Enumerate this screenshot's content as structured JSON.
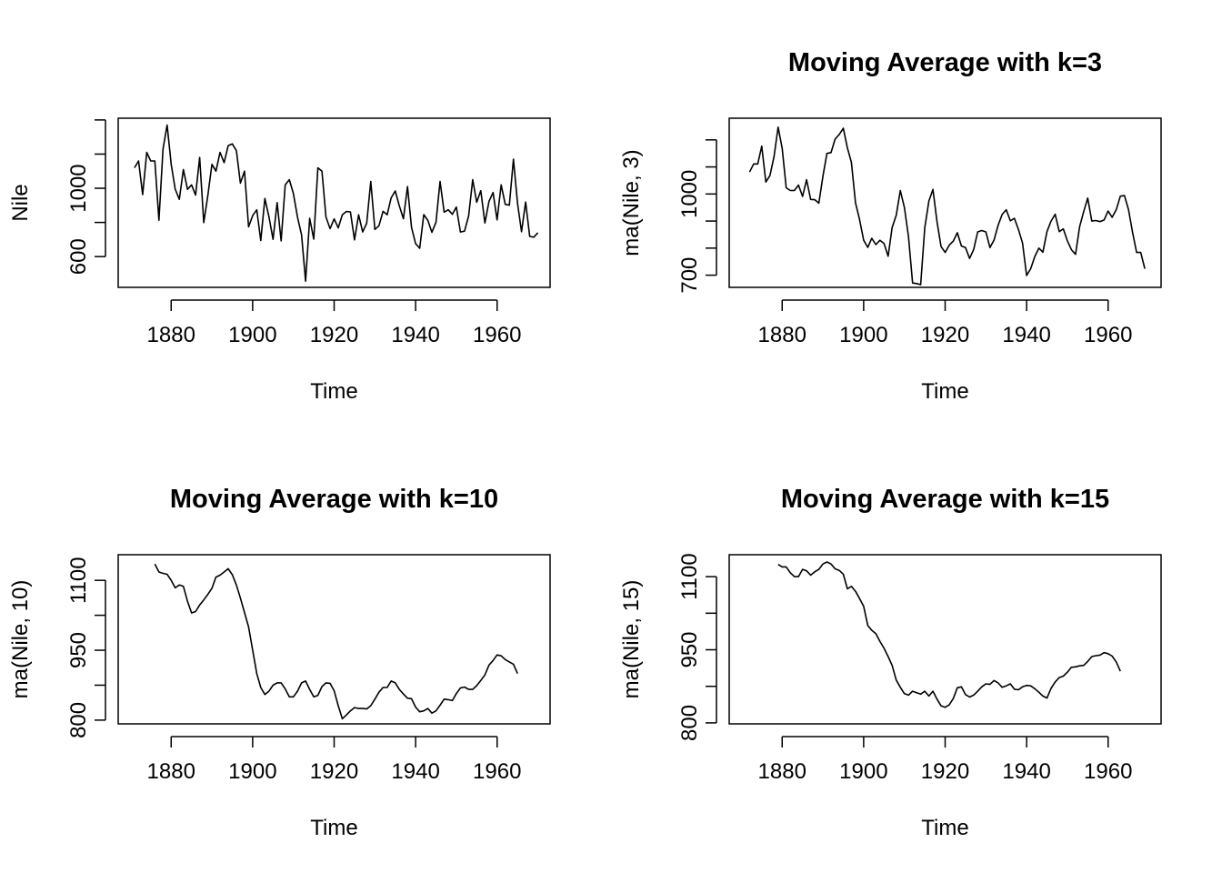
{
  "chart_data": [
    {
      "type": "line",
      "title": "",
      "xlabel": "Time",
      "ylabel": "Nile",
      "xlim": [
        1867,
        1973
      ],
      "ylim": [
        420,
        1410
      ],
      "xticks": [
        "1880",
        "1900",
        "1920",
        "1940",
        "1960"
      ],
      "yticks": [
        "600",
        "1000"
      ],
      "ytick_values": [
        400,
        600,
        800,
        1000,
        1200,
        1400
      ],
      "x": [
        1871,
        1872,
        1873,
        1874,
        1875,
        1876,
        1877,
        1878,
        1879,
        1880,
        1881,
        1882,
        1883,
        1884,
        1885,
        1886,
        1887,
        1888,
        1889,
        1890,
        1891,
        1892,
        1893,
        1894,
        1895,
        1896,
        1897,
        1898,
        1899,
        1900,
        1901,
        1902,
        1903,
        1904,
        1905,
        1906,
        1907,
        1908,
        1909,
        1910,
        1911,
        1912,
        1913,
        1914,
        1915,
        1916,
        1917,
        1918,
        1919,
        1920,
        1921,
        1922,
        1923,
        1924,
        1925,
        1926,
        1927,
        1928,
        1929,
        1930,
        1931,
        1932,
        1933,
        1934,
        1935,
        1936,
        1937,
        1938,
        1939,
        1940,
        1941,
        1942,
        1943,
        1944,
        1945,
        1946,
        1947,
        1948,
        1949,
        1950,
        1951,
        1952,
        1953,
        1954,
        1955,
        1956,
        1957,
        1958,
        1959,
        1960,
        1961,
        1962,
        1963,
        1964,
        1965,
        1966,
        1967,
        1968,
        1969,
        1970
      ],
      "values": [
        1120,
        1160,
        963,
        1210,
        1160,
        1160,
        813,
        1230,
        1370,
        1140,
        995,
        935,
        1110,
        994,
        1020,
        960,
        1180,
        799,
        958,
        1140,
        1100,
        1210,
        1150,
        1250,
        1260,
        1220,
        1030,
        1100,
        774,
        840,
        874,
        694,
        940,
        833,
        701,
        916,
        692,
        1020,
        1050,
        969,
        831,
        726,
        456,
        824,
        702,
        1120,
        1100,
        832,
        764,
        821,
        768,
        845,
        864,
        862,
        698,
        845,
        744,
        796,
        1040,
        759,
        781,
        865,
        845,
        944,
        984,
        897,
        822,
        1010,
        771,
        676,
        649,
        846,
        812,
        742,
        801,
        1040,
        860,
        874,
        848,
        890,
        744,
        749,
        838,
        1050,
        918,
        986,
        797,
        923,
        975,
        815,
        1020,
        906,
        901,
        1170,
        912,
        746,
        919,
        718,
        714,
        740
      ]
    },
    {
      "type": "line",
      "title": "Moving Average with k=3",
      "xlabel": "Time",
      "ylabel": "ma(Nile, 3)",
      "xlim": [
        1867,
        1973
      ],
      "ylim": [
        655,
        1280
      ],
      "xticks": [
        "1880",
        "1900",
        "1920",
        "1940",
        "1960"
      ],
      "yticks": [
        "700",
        "1000"
      ],
      "ytick_values": [
        700,
        800,
        900,
        1000,
        1100,
        1200
      ],
      "x": [
        1872,
        1873,
        1874,
        1875,
        1876,
        1877,
        1878,
        1879,
        1880,
        1881,
        1882,
        1883,
        1884,
        1885,
        1886,
        1887,
        1888,
        1889,
        1890,
        1891,
        1892,
        1893,
        1894,
        1895,
        1896,
        1897,
        1898,
        1899,
        1900,
        1901,
        1902,
        1903,
        1904,
        1905,
        1906,
        1907,
        1908,
        1909,
        1910,
        1911,
        1912,
        1913,
        1914,
        1915,
        1916,
        1917,
        1918,
        1919,
        1920,
        1921,
        1922,
        1923,
        1924,
        1925,
        1926,
        1927,
        1928,
        1929,
        1930,
        1931,
        1932,
        1933,
        1934,
        1935,
        1936,
        1937,
        1938,
        1939,
        1940,
        1941,
        1942,
        1943,
        1944,
        1945,
        1946,
        1947,
        1948,
        1949,
        1950,
        1951,
        1952,
        1953,
        1954,
        1955,
        1956,
        1957,
        1958,
        1959,
        1960,
        1961,
        1962,
        1963,
        1964,
        1965,
        1966,
        1967,
        1968,
        1969
      ],
      "values": [
        1081,
        1111,
        1111,
        1177,
        1044,
        1068,
        1138,
        1247,
        1168,
        1023,
        1013,
        1013,
        1033,
        991,
        1053,
        980,
        979,
        966,
        1066,
        1150,
        1153,
        1203,
        1220,
        1243,
        1170,
        1117,
        968,
        905,
        829,
        803,
        836,
        813,
        829,
        817,
        770,
        876,
        921,
        1013,
        950,
        842,
        671,
        669,
        665,
        875,
        974,
        1017,
        899,
        806,
        784,
        811,
        826,
        857,
        808,
        802,
        762,
        795,
        860,
        865,
        860,
        802,
        830,
        885,
        924,
        942,
        901,
        910,
        868,
        819,
        699,
        724,
        769,
        800,
        785,
        861,
        900,
        925,
        861,
        871,
        827,
        794,
        777,
        879,
        935,
        985,
        900,
        902,
        898,
        904,
        937,
        914,
        942,
        992,
        994,
        942,
        859,
        784,
        784,
        724
      ]
    },
    {
      "type": "line",
      "title": "Moving Average with k=10",
      "xlabel": "Time",
      "ylabel": "ma(Nile, 10)",
      "xlim": [
        1867,
        1973
      ],
      "ylim": [
        792,
        1155
      ],
      "xticks": [
        "1880",
        "1900",
        "1920",
        "1940",
        "1960"
      ],
      "yticks": [
        "800",
        "950",
        "1100"
      ],
      "ytick_values": [
        800,
        875,
        950,
        1025,
        1100,
        1175
      ],
      "x": [
        1876,
        1877,
        1878,
        1879,
        1880,
        1881,
        1882,
        1883,
        1884,
        1885,
        1886,
        1887,
        1888,
        1889,
        1890,
        1891,
        1892,
        1893,
        1894,
        1895,
        1896,
        1897,
        1898,
        1899,
        1900,
        1901,
        1902,
        1903,
        1904,
        1905,
        1906,
        1907,
        1908,
        1909,
        1910,
        1911,
        1912,
        1913,
        1914,
        1915,
        1916,
        1917,
        1918,
        1919,
        1920,
        1921,
        1922,
        1923,
        1924,
        1925,
        1926,
        1927,
        1928,
        1929,
        1930,
        1931,
        1932,
        1933,
        1934,
        1935,
        1936,
        1937,
        1938,
        1939,
        1940,
        1941,
        1942,
        1943,
        1944,
        1945,
        1946,
        1947,
        1948,
        1949,
        1950,
        1951,
        1952,
        1953,
        1954,
        1955,
        1956,
        1957,
        1958,
        1959,
        1960,
        1961,
        1962,
        1963,
        1964,
        1965
      ],
      "values": [
        1135,
        1118,
        1115,
        1113,
        1100,
        1084,
        1090,
        1087,
        1055,
        1030,
        1033,
        1047,
        1058,
        1070,
        1083,
        1107,
        1111,
        1118,
        1125,
        1112,
        1090,
        1062,
        1031,
        1000,
        950,
        900,
        870,
        855,
        862,
        875,
        880,
        880,
        867,
        850,
        850,
        862,
        880,
        884,
        866,
        850,
        853,
        872,
        880,
        879,
        863,
        831,
        803,
        811,
        820,
        827,
        825,
        825,
        824,
        831,
        845,
        860,
        870,
        870,
        884,
        880,
        866,
        856,
        847,
        846,
        828,
        818,
        820,
        825,
        815,
        820,
        832,
        845,
        844,
        842,
        857,
        869,
        871,
        866,
        866,
        874,
        885,
        897,
        918,
        928,
        940,
        938,
        930,
        925,
        920,
        900
      ]
    },
    {
      "type": "line",
      "title": "Moving Average with k=15",
      "xlabel": "Time",
      "ylabel": "ma(Nile, 15)",
      "xlim": [
        1867,
        1973
      ],
      "ylim": [
        798,
        1145
      ],
      "xticks": [
        "1880",
        "1900",
        "1920",
        "1940",
        "1960"
      ],
      "yticks": [
        "800",
        "950",
        "1100"
      ],
      "ytick_values": [
        800,
        875,
        950,
        1025,
        1100,
        1175
      ],
      "x": [
        1879,
        1880,
        1881,
        1882,
        1883,
        1884,
        1885,
        1886,
        1887,
        1888,
        1889,
        1890,
        1891,
        1892,
        1893,
        1894,
        1895,
        1896,
        1897,
        1898,
        1899,
        1900,
        1901,
        1902,
        1903,
        1904,
        1905,
        1906,
        1907,
        1908,
        1909,
        1910,
        1911,
        1912,
        1913,
        1914,
        1915,
        1916,
        1917,
        1918,
        1919,
        1920,
        1921,
        1922,
        1923,
        1924,
        1925,
        1926,
        1927,
        1928,
        1929,
        1930,
        1931,
        1932,
        1933,
        1934,
        1935,
        1936,
        1937,
        1938,
        1939,
        1940,
        1941,
        1942,
        1943,
        1944,
        1945,
        1946,
        1947,
        1948,
        1949,
        1950,
        1951,
        1952,
        1953,
        1954,
        1955,
        1956,
        1957,
        1958,
        1959,
        1960,
        1961,
        1962,
        1963
      ],
      "values": [
        1125,
        1120,
        1120,
        1108,
        1100,
        1100,
        1115,
        1112,
        1103,
        1110,
        1115,
        1126,
        1130,
        1126,
        1116,
        1113,
        1105,
        1075,
        1080,
        1070,
        1055,
        1039,
        1000,
        990,
        983,
        967,
        953,
        936,
        918,
        888,
        873,
        860,
        857,
        865,
        862,
        859,
        865,
        855,
        865,
        849,
        835,
        832,
        837,
        850,
        872,
        874,
        858,
        853,
        857,
        865,
        874,
        880,
        879,
        887,
        882,
        873,
        876,
        880,
        869,
        868,
        874,
        877,
        876,
        870,
        863,
        855,
        851,
        871,
        884,
        893,
        896,
        904,
        914,
        915,
        917,
        918,
        926,
        936,
        938,
        939,
        944,
        942,
        937,
        925,
        906
      ]
    }
  ]
}
